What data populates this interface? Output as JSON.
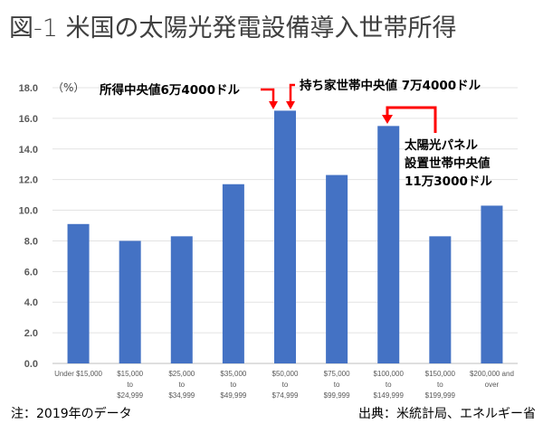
{
  "chart_data": {
    "type": "bar",
    "title": "図-1 米国の太陽光発電設備導入世帯所得",
    "ylabel": "（%）",
    "xlabel": "",
    "ylim": [
      0,
      18
    ],
    "yticks": [
      "0.0",
      "2.0",
      "4.0",
      "6.0",
      "8.0",
      "10.0",
      "12.0",
      "14.0",
      "16.0",
      "18.0"
    ],
    "grid": true,
    "bar_color": "#4472C4",
    "annotation_color": "#FF0000",
    "categories": [
      [
        "Under $15,000"
      ],
      [
        "$15,000",
        "to",
        "$24,999"
      ],
      [
        "$25,000",
        "to",
        "$34,999"
      ],
      [
        "$35,000",
        "to",
        "$49,999"
      ],
      [
        "$50,000",
        "to",
        "$74,999"
      ],
      [
        "$75,000",
        "to",
        "$99,999"
      ],
      [
        "$100,000",
        "to",
        "$149,999"
      ],
      [
        "$150,000",
        "to",
        "$199,999"
      ],
      [
        "$200,000 and",
        "over"
      ]
    ],
    "values": [
      9.1,
      8.0,
      8.3,
      11.7,
      16.5,
      12.3,
      15.5,
      8.3,
      10.3
    ],
    "annotations": [
      {
        "text": [
          "所得中央値6万4000ドル"
        ],
        "category_index": 4
      },
      {
        "text": [
          "持ち家世帯中央値 7万4000ドル"
        ],
        "category_index": 4
      },
      {
        "text": [
          "太陽光パネル",
          "設置世帯中央値",
          "11万3000ドル"
        ],
        "category_index": 6
      }
    ]
  },
  "notes": {
    "left": "注：2019年のデータ",
    "right": "出典：米統計局、エネルギー省"
  }
}
